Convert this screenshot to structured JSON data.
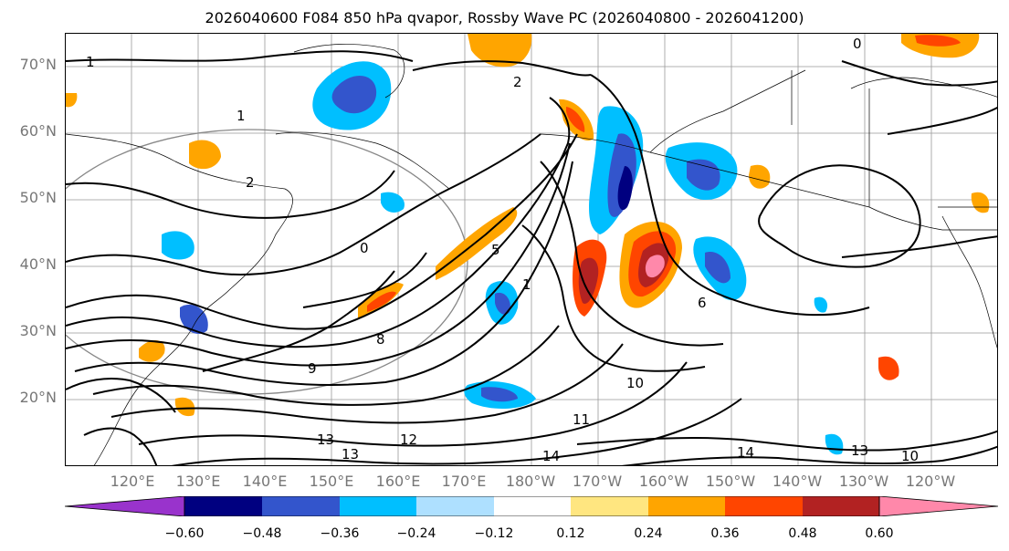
{
  "title": "2026040600 F084 850 hPa qvapor, Rossby Wave PC (2026040800 - 2026041200)",
  "lat_labels": [
    "70°N",
    "60°N",
    "50°N",
    "40°N",
    "30°N",
    "20°N"
  ],
  "lon_labels": [
    "120°E",
    "130°E",
    "140°E",
    "150°E",
    "160°E",
    "170°E",
    "180°W",
    "170°W",
    "160°W",
    "150°W",
    "140°W",
    "130°W",
    "120°W"
  ],
  "contour_labels": [
    "1",
    "2",
    "1",
    "2",
    "0",
    "0",
    "1",
    "5",
    "6",
    "8",
    "9",
    "10",
    "11",
    "12",
    "13",
    "14",
    "14",
    "13",
    "10",
    "13"
  ],
  "colorbar": {
    "colors": [
      "#9933cc",
      "#000080",
      "#3355cc",
      "#00bfff",
      "#aee0ff",
      "#ffffff",
      "#ffe680",
      "#ffa500",
      "#ff4500",
      "#b22222",
      "#ff88aa"
    ],
    "ticks": [
      "−0.60",
      "−0.48",
      "−0.36",
      "−0.24",
      "−0.12",
      "0.12",
      "0.24",
      "0.36",
      "0.48",
      "0.60"
    ]
  }
}
